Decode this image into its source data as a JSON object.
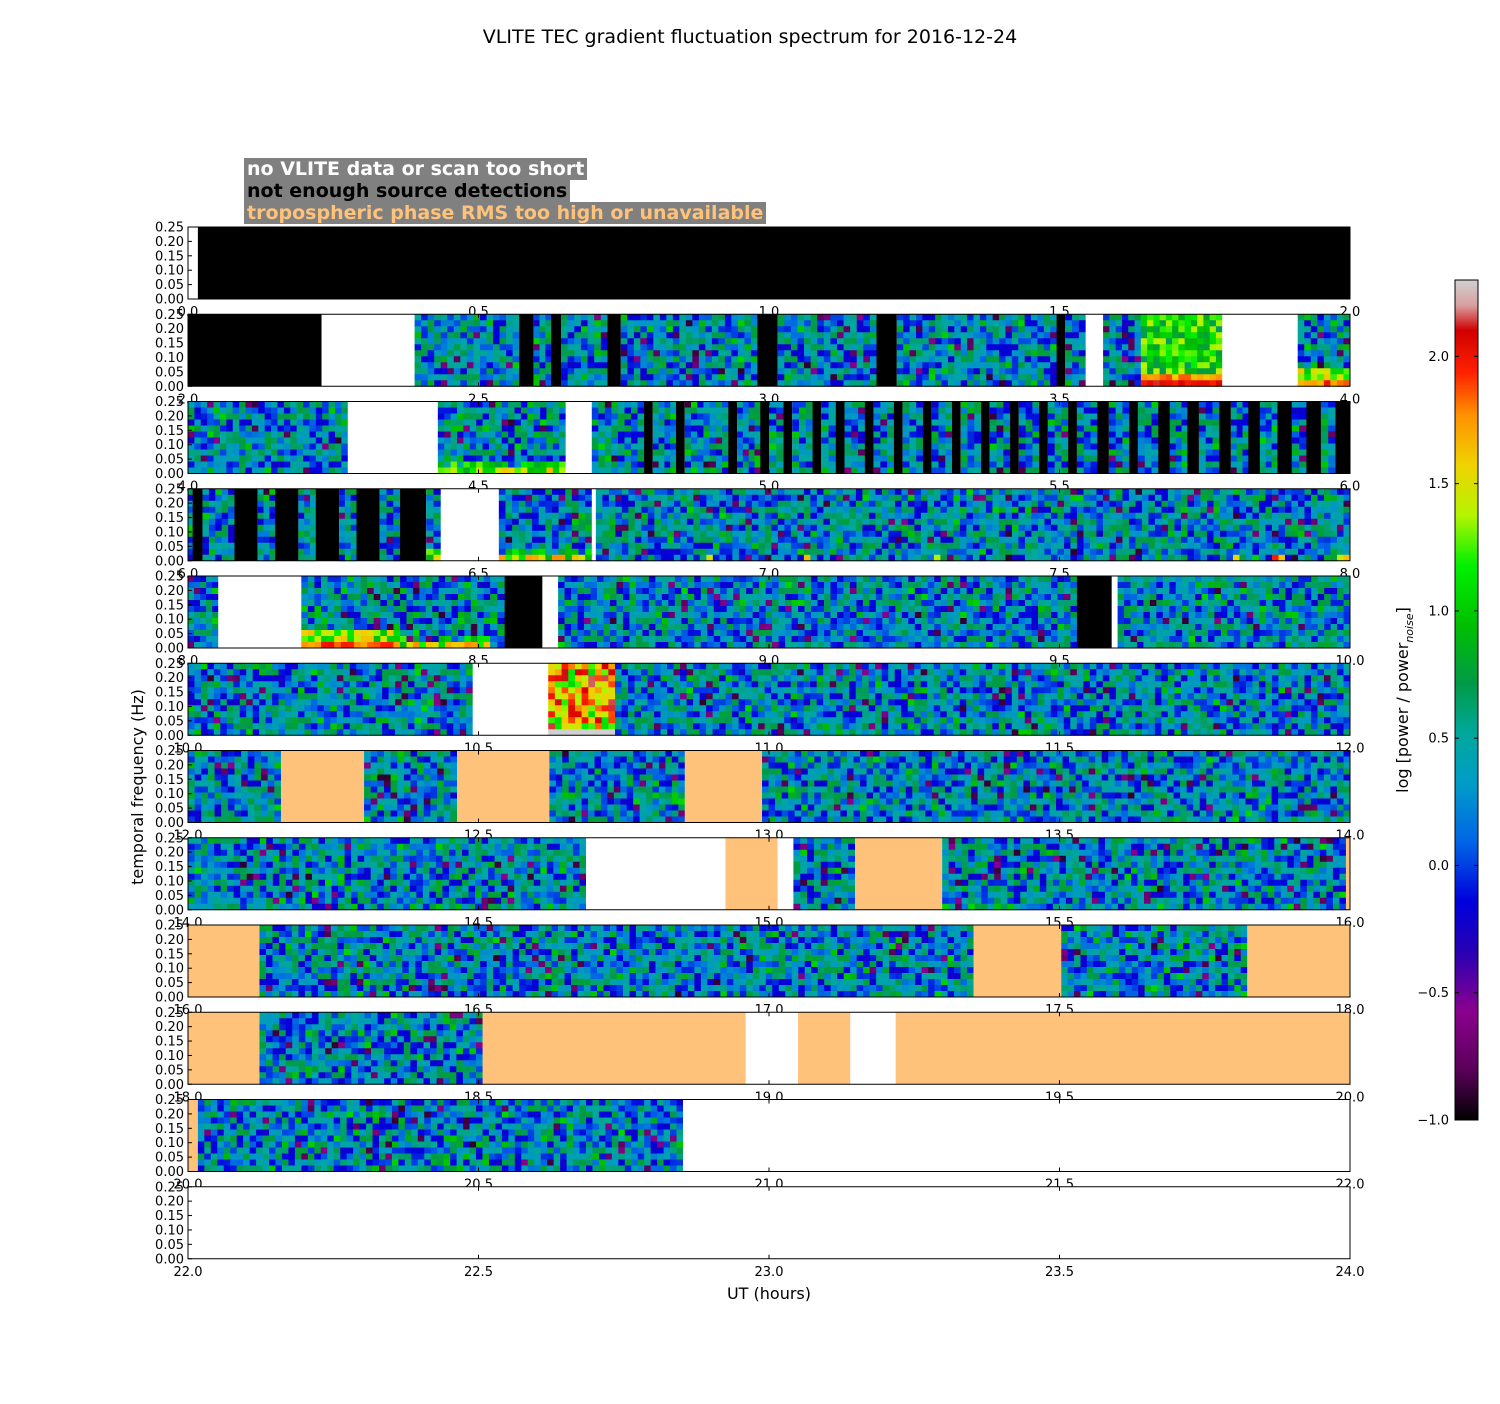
{
  "chart_data": {
    "type": "heatmap",
    "title": "VLITE TEC gradient fluctuation spectrum for 2016-12-24",
    "xlabel": "UT (hours)",
    "ylabel": "temporal frequency (Hz)",
    "colorbar_label": "log [power / power_noise]",
    "colorbar_range": [
      -1.0,
      2.3
    ],
    "colorbar_ticks": [
      "2.0",
      "1.5",
      "1.0",
      "0.5",
      "0.0",
      "−0.5",
      "−1.0"
    ],
    "colorbar_tick_values": [
      2.0,
      1.5,
      1.0,
      0.5,
      0.0,
      -0.5,
      -1.0
    ],
    "ylim": [
      0.0,
      0.25
    ],
    "ytick_labels": [
      "0.25",
      "0.20",
      "0.15",
      "0.10",
      "0.05",
      "0.00"
    ],
    "legend": [
      {
        "label": "no VLITE data or scan too short",
        "color": "#ffffff"
      },
      {
        "label": "not enough source detections",
        "color": "#000000"
      },
      {
        "label": "tropospheric phase RMS too high or unavailable",
        "color": "#ffc27a"
      }
    ],
    "category_colors": {
      "no_data": "#ffffff",
      "few_detections": "#000000",
      "tropo": "#ffc27a"
    },
    "panels": [
      {
        "xlim": [
          0.0,
          2.0
        ],
        "xtick_labels": [
          "0.0",
          "0.5",
          "1.0",
          "1.5",
          "2.0"
        ],
        "segments": [
          {
            "start": 0.0,
            "end": 0.017,
            "cat": "no_data"
          },
          {
            "start": 0.017,
            "end": 2.0,
            "cat": "few_detections"
          }
        ]
      },
      {
        "xlim": [
          2.0,
          4.0
        ],
        "xtick_labels": [
          "2.0",
          "2.5",
          "3.0",
          "3.5",
          "4.0"
        ],
        "segments": [
          {
            "start": 2.0,
            "end": 2.23,
            "cat": "few_detections"
          },
          {
            "start": 2.23,
            "end": 2.39,
            "cat": "no_data"
          },
          {
            "start": 2.39,
            "end": 2.57,
            "cat": "spectrum"
          },
          {
            "start": 2.57,
            "end": 2.595,
            "cat": "few_detections"
          },
          {
            "start": 2.595,
            "end": 2.625,
            "cat": "spectrum"
          },
          {
            "start": 2.625,
            "end": 2.642,
            "cat": "few_detections"
          },
          {
            "start": 2.642,
            "end": 2.722,
            "cat": "spectrum"
          },
          {
            "start": 2.722,
            "end": 2.745,
            "cat": "few_detections"
          },
          {
            "start": 2.745,
            "end": 2.98,
            "cat": "spectrum"
          },
          {
            "start": 2.98,
            "end": 3.015,
            "cat": "few_detections"
          },
          {
            "start": 3.015,
            "end": 3.185,
            "cat": "spectrum"
          },
          {
            "start": 3.185,
            "end": 3.22,
            "cat": "few_detections"
          },
          {
            "start": 3.22,
            "end": 3.495,
            "cat": "spectrum"
          },
          {
            "start": 3.495,
            "end": 3.51,
            "cat": "few_detections"
          },
          {
            "start": 3.51,
            "end": 3.545,
            "cat": "spectrum"
          },
          {
            "start": 3.545,
            "end": 3.575,
            "cat": "no_data"
          },
          {
            "start": 3.575,
            "end": 3.64,
            "cat": "spectrum"
          },
          {
            "start": 3.64,
            "end": 3.78,
            "cat": "spectrum",
            "hot": "strong"
          },
          {
            "start": 3.78,
            "end": 3.91,
            "cat": "no_data"
          },
          {
            "start": 3.91,
            "end": 4.0,
            "cat": "spectrum",
            "hot": "medium"
          }
        ]
      },
      {
        "xlim": [
          4.0,
          6.0
        ],
        "xtick_labels": [
          "4.0",
          "4.5",
          "5.0",
          "5.5",
          "6.0"
        ],
        "segments": [
          {
            "start": 4.0,
            "end": 4.275,
            "cat": "spectrum"
          },
          {
            "start": 4.275,
            "end": 4.43,
            "cat": "no_data"
          },
          {
            "start": 4.43,
            "end": 4.65,
            "cat": "spectrum",
            "hot": "weak"
          },
          {
            "start": 4.65,
            "end": 4.695,
            "cat": "no_data"
          },
          {
            "start": 4.695,
            "end": 4.785,
            "cat": "spectrum"
          },
          {
            "start": 4.785,
            "end": 4.8,
            "cat": "few_detections"
          },
          {
            "start": 4.8,
            "end": 4.84,
            "cat": "spectrum"
          },
          {
            "start": 4.84,
            "end": 4.855,
            "cat": "few_detections"
          },
          {
            "start": 4.855,
            "end": 4.93,
            "cat": "spectrum"
          },
          {
            "start": 4.93,
            "end": 4.945,
            "cat": "few_detections"
          },
          {
            "start": 4.945,
            "end": 4.985,
            "cat": "spectrum"
          },
          {
            "start": 4.985,
            "end": 5.0,
            "cat": "few_detections"
          },
          {
            "start": 5.0,
            "end": 5.025,
            "cat": "spectrum"
          },
          {
            "start": 5.025,
            "end": 5.04,
            "cat": "few_detections"
          },
          {
            "start": 5.04,
            "end": 5.075,
            "cat": "spectrum"
          },
          {
            "start": 5.075,
            "end": 5.09,
            "cat": "few_detections"
          },
          {
            "start": 5.09,
            "end": 5.115,
            "cat": "spectrum"
          },
          {
            "start": 5.115,
            "end": 5.13,
            "cat": "few_detections"
          },
          {
            "start": 5.13,
            "end": 5.165,
            "cat": "spectrum"
          },
          {
            "start": 5.165,
            "end": 5.18,
            "cat": "few_detections"
          },
          {
            "start": 5.18,
            "end": 5.215,
            "cat": "spectrum"
          },
          {
            "start": 5.215,
            "end": 5.23,
            "cat": "few_detections"
          },
          {
            "start": 5.23,
            "end": 5.265,
            "cat": "spectrum"
          },
          {
            "start": 5.265,
            "end": 5.28,
            "cat": "few_detections"
          },
          {
            "start": 5.28,
            "end": 5.315,
            "cat": "spectrum"
          },
          {
            "start": 5.315,
            "end": 5.33,
            "cat": "few_detections"
          },
          {
            "start": 5.33,
            "end": 5.365,
            "cat": "spectrum"
          },
          {
            "start": 5.365,
            "end": 5.38,
            "cat": "few_detections"
          },
          {
            "start": 5.38,
            "end": 5.415,
            "cat": "spectrum"
          },
          {
            "start": 5.415,
            "end": 5.43,
            "cat": "few_detections"
          },
          {
            "start": 5.43,
            "end": 5.465,
            "cat": "spectrum"
          },
          {
            "start": 5.465,
            "end": 5.48,
            "cat": "few_detections"
          },
          {
            "start": 5.48,
            "end": 5.515,
            "cat": "spectrum"
          },
          {
            "start": 5.515,
            "end": 5.53,
            "cat": "few_detections"
          },
          {
            "start": 5.53,
            "end": 5.565,
            "cat": "spectrum"
          },
          {
            "start": 5.565,
            "end": 5.585,
            "cat": "few_detections"
          },
          {
            "start": 5.585,
            "end": 5.62,
            "cat": "spectrum"
          },
          {
            "start": 5.62,
            "end": 5.635,
            "cat": "few_detections"
          },
          {
            "start": 5.635,
            "end": 5.67,
            "cat": "spectrum"
          },
          {
            "start": 5.67,
            "end": 5.69,
            "cat": "few_detections"
          },
          {
            "start": 5.69,
            "end": 5.72,
            "cat": "spectrum"
          },
          {
            "start": 5.72,
            "end": 5.74,
            "cat": "few_detections"
          },
          {
            "start": 5.74,
            "end": 5.775,
            "cat": "spectrum"
          },
          {
            "start": 5.775,
            "end": 5.795,
            "cat": "few_detections"
          },
          {
            "start": 5.795,
            "end": 5.825,
            "cat": "spectrum"
          },
          {
            "start": 5.825,
            "end": 5.845,
            "cat": "few_detections"
          },
          {
            "start": 5.845,
            "end": 5.875,
            "cat": "spectrum"
          },
          {
            "start": 5.875,
            "end": 5.9,
            "cat": "few_detections"
          },
          {
            "start": 5.9,
            "end": 5.925,
            "cat": "spectrum"
          },
          {
            "start": 5.925,
            "end": 5.95,
            "cat": "few_detections"
          },
          {
            "start": 5.95,
            "end": 5.975,
            "cat": "spectrum"
          },
          {
            "start": 5.975,
            "end": 6.0,
            "cat": "few_detections"
          }
        ]
      },
      {
        "xlim": [
          6.0,
          8.0
        ],
        "xtick_labels": [
          "6.0",
          "6.5",
          "7.0",
          "7.5",
          "8.0"
        ],
        "segments": [
          {
            "start": 6.0,
            "end": 6.008,
            "cat": "spectrum"
          },
          {
            "start": 6.008,
            "end": 6.025,
            "cat": "few_detections"
          },
          {
            "start": 6.025,
            "end": 6.08,
            "cat": "spectrum"
          },
          {
            "start": 6.08,
            "end": 6.12,
            "cat": "few_detections"
          },
          {
            "start": 6.12,
            "end": 6.15,
            "cat": "spectrum"
          },
          {
            "start": 6.15,
            "end": 6.19,
            "cat": "few_detections"
          },
          {
            "start": 6.19,
            "end": 6.22,
            "cat": "spectrum"
          },
          {
            "start": 6.22,
            "end": 6.26,
            "cat": "few_detections"
          },
          {
            "start": 6.26,
            "end": 6.29,
            "cat": "spectrum"
          },
          {
            "start": 6.29,
            "end": 6.33,
            "cat": "few_detections"
          },
          {
            "start": 6.33,
            "end": 6.365,
            "cat": "spectrum"
          },
          {
            "start": 6.365,
            "end": 6.41,
            "cat": "few_detections"
          },
          {
            "start": 6.41,
            "end": 6.435,
            "cat": "spectrum",
            "hot": "weak"
          },
          {
            "start": 6.435,
            "end": 6.535,
            "cat": "no_data"
          },
          {
            "start": 6.535,
            "end": 6.695,
            "cat": "spectrum",
            "hot": "weak"
          },
          {
            "start": 6.695,
            "end": 6.702,
            "cat": "no_data"
          },
          {
            "start": 6.702,
            "end": 8.0,
            "cat": "spectrum",
            "hot": "sparse"
          }
        ]
      },
      {
        "xlim": [
          8.0,
          10.0
        ],
        "xtick_labels": [
          "8.0",
          "8.5",
          "9.0",
          "9.5",
          "10.0"
        ],
        "segments": [
          {
            "start": 8.0,
            "end": 8.052,
            "cat": "spectrum"
          },
          {
            "start": 8.052,
            "end": 8.195,
            "cat": "no_data"
          },
          {
            "start": 8.195,
            "end": 8.365,
            "cat": "spectrum",
            "hot": "medium"
          },
          {
            "start": 8.365,
            "end": 8.52,
            "cat": "spectrum",
            "hot": "weak"
          },
          {
            "start": 8.52,
            "end": 8.545,
            "cat": "spectrum"
          },
          {
            "start": 8.545,
            "end": 8.61,
            "cat": "few_detections"
          },
          {
            "start": 8.61,
            "end": 8.637,
            "cat": "no_data"
          },
          {
            "start": 8.637,
            "end": 9.53,
            "cat": "spectrum"
          },
          {
            "start": 9.53,
            "end": 9.59,
            "cat": "few_detections"
          },
          {
            "start": 9.59,
            "end": 9.6,
            "cat": "no_data"
          },
          {
            "start": 9.6,
            "end": 10.0,
            "cat": "spectrum"
          }
        ]
      },
      {
        "xlim": [
          10.0,
          12.0
        ],
        "xtick_labels": [
          "10.0",
          "10.5",
          "11.0",
          "11.5",
          "12.0"
        ],
        "segments": [
          {
            "start": 10.0,
            "end": 10.49,
            "cat": "spectrum"
          },
          {
            "start": 10.49,
            "end": 10.62,
            "cat": "no_data"
          },
          {
            "start": 10.62,
            "end": 10.735,
            "cat": "spectrum",
            "hot": "burst"
          },
          {
            "start": 10.735,
            "end": 12.0,
            "cat": "spectrum"
          }
        ]
      },
      {
        "xlim": [
          12.0,
          14.0
        ],
        "xtick_labels": [
          "12.0",
          "12.5",
          "13.0",
          "13.5",
          "14.0"
        ],
        "segments": [
          {
            "start": 12.0,
            "end": 12.16,
            "cat": "spectrum"
          },
          {
            "start": 12.16,
            "end": 12.303,
            "cat": "tropo"
          },
          {
            "start": 12.303,
            "end": 12.463,
            "cat": "spectrum"
          },
          {
            "start": 12.463,
            "end": 12.622,
            "cat": "tropo"
          },
          {
            "start": 12.622,
            "end": 12.855,
            "cat": "spectrum"
          },
          {
            "start": 12.855,
            "end": 12.988,
            "cat": "tropo"
          },
          {
            "start": 12.988,
            "end": 14.0,
            "cat": "spectrum"
          }
        ]
      },
      {
        "xlim": [
          14.0,
          16.0
        ],
        "xtick_labels": [
          "14.0",
          "14.5",
          "15.0",
          "15.5",
          "16.0"
        ],
        "segments": [
          {
            "start": 14.0,
            "end": 14.685,
            "cat": "spectrum"
          },
          {
            "start": 14.685,
            "end": 14.925,
            "cat": "no_data"
          },
          {
            "start": 14.925,
            "end": 15.015,
            "cat": "tropo"
          },
          {
            "start": 15.015,
            "end": 15.042,
            "cat": "no_data"
          },
          {
            "start": 15.042,
            "end": 15.148,
            "cat": "spectrum"
          },
          {
            "start": 15.148,
            "end": 15.298,
            "cat": "tropo"
          },
          {
            "start": 15.298,
            "end": 15.993,
            "cat": "spectrum"
          },
          {
            "start": 15.993,
            "end": 16.0,
            "cat": "tropo"
          }
        ]
      },
      {
        "xlim": [
          16.0,
          18.0
        ],
        "xtick_labels": [
          "16.0",
          "16.5",
          "17.0",
          "17.5",
          "18.0"
        ],
        "segments": [
          {
            "start": 16.0,
            "end": 16.123,
            "cat": "tropo"
          },
          {
            "start": 16.123,
            "end": 17.352,
            "cat": "spectrum"
          },
          {
            "start": 17.352,
            "end": 17.503,
            "cat": "tropo"
          },
          {
            "start": 17.503,
            "end": 17.823,
            "cat": "spectrum"
          },
          {
            "start": 17.823,
            "end": 18.0,
            "cat": "tropo"
          }
        ]
      },
      {
        "xlim": [
          18.0,
          20.0
        ],
        "xtick_labels": [
          "18.0",
          "18.5",
          "19.0",
          "19.5",
          "20.0"
        ],
        "segments": [
          {
            "start": 18.0,
            "end": 18.123,
            "cat": "tropo"
          },
          {
            "start": 18.123,
            "end": 18.507,
            "cat": "spectrum"
          },
          {
            "start": 18.507,
            "end": 18.96,
            "cat": "tropo"
          },
          {
            "start": 18.96,
            "end": 19.05,
            "cat": "no_data"
          },
          {
            "start": 19.05,
            "end": 19.14,
            "cat": "tropo"
          },
          {
            "start": 19.14,
            "end": 19.218,
            "cat": "no_data"
          },
          {
            "start": 19.218,
            "end": 20.0,
            "cat": "tropo"
          }
        ]
      },
      {
        "xlim": [
          20.0,
          22.0
        ],
        "xtick_labels": [
          "20.0",
          "20.5",
          "21.0",
          "21.5",
          "22.0"
        ],
        "segments": [
          {
            "start": 20.0,
            "end": 20.017,
            "cat": "tropo"
          },
          {
            "start": 20.017,
            "end": 20.852,
            "cat": "spectrum"
          },
          {
            "start": 20.852,
            "end": 22.0,
            "cat": "no_data"
          }
        ]
      },
      {
        "xlim": [
          22.0,
          24.0
        ],
        "xtick_labels": [
          "22.0",
          "22.5",
          "23.0",
          "23.5",
          "24.0"
        ],
        "segments": [
          {
            "start": 22.0,
            "end": 24.0,
            "cat": "no_data"
          }
        ]
      }
    ]
  }
}
